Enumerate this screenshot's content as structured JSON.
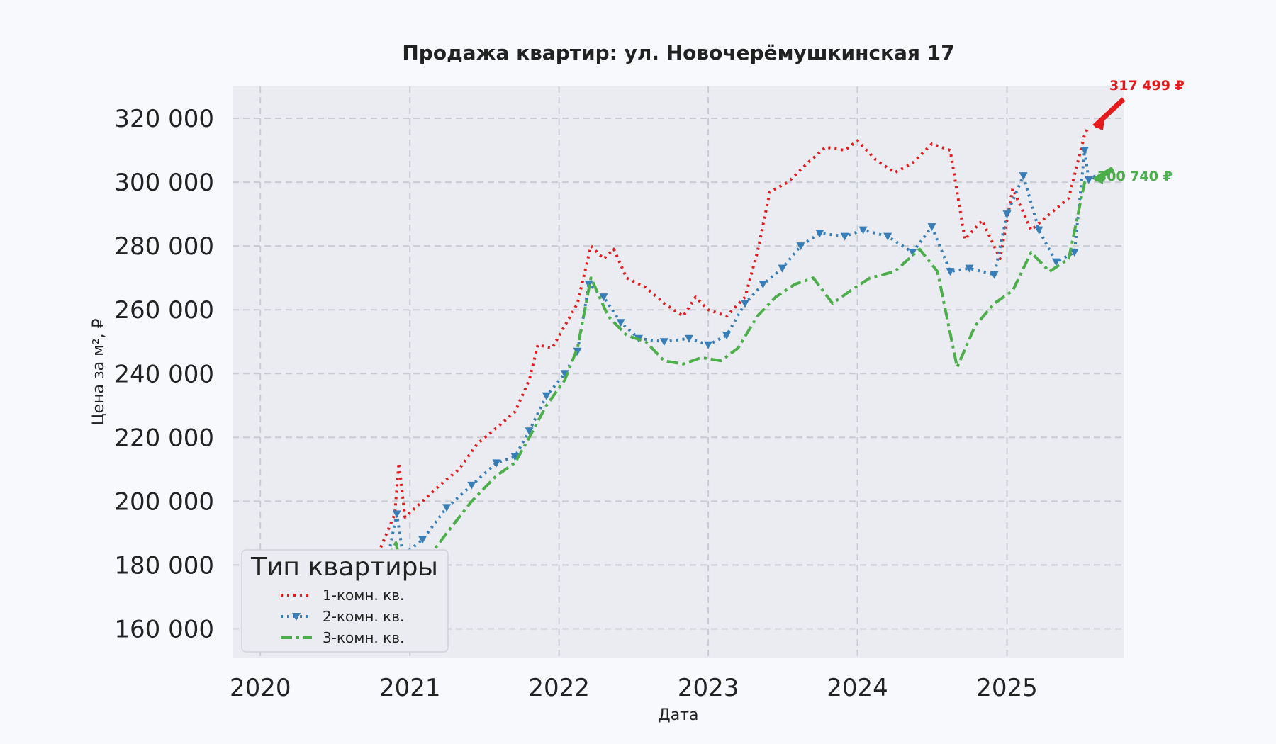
{
  "chart_data": {
    "type": "line",
    "title": "Продажа квартир: ул. Новочерёмушкинская 17",
    "xlabel": "Дата",
    "ylabel": "Цена за м², ₽",
    "x_ticks": [
      "2020",
      "2021",
      "2022",
      "2023",
      "2024",
      "2025"
    ],
    "y_ticks": [
      "160 000",
      "180 000",
      "200 000",
      "220 000",
      "240 000",
      "260 000",
      "280 000",
      "300 000",
      "320 000"
    ],
    "xlim": [
      "2019-10-25",
      "2025-10-15"
    ],
    "ylim": [
      151000,
      330000
    ],
    "grid": true,
    "legend": {
      "title": "Тип квартиры",
      "position": "bottom-left"
    },
    "series": [
      {
        "name": "1-комн. кв.",
        "color": "#e41a1c",
        "style": "dotted",
        "x": [
          "2020-01-01",
          "2020-02-15",
          "2020-04-01",
          "2020-05-01",
          "2020-06-15",
          "2020-08-01",
          "2020-09-15",
          "2020-10-20",
          "2020-11-25",
          "2020-12-05",
          "2020-12-20",
          "2021-02-01",
          "2021-03-15",
          "2021-05-01",
          "2021-06-15",
          "2021-08-01",
          "2021-09-15",
          "2021-10-20",
          "2021-11-10",
          "2021-12-15",
          "2022-01-15",
          "2022-02-15",
          "2022-03-20",
          "2022-04-20",
          "2022-05-15",
          "2022-06-15",
          "2022-08-01",
          "2022-09-15",
          "2022-11-01",
          "2022-12-01",
          "2023-01-01",
          "2023-02-15",
          "2023-04-01",
          "2023-05-01",
          "2023-06-01",
          "2023-07-15",
          "2023-09-01",
          "2023-10-15",
          "2023-12-01",
          "2024-01-01",
          "2024-02-15",
          "2024-04-01",
          "2024-05-15",
          "2024-07-01",
          "2024-08-15",
          "2024-09-20",
          "2024-11-01",
          "2024-12-15",
          "2025-01-15",
          "2025-03-01",
          "2025-04-15",
          "2025-06-01",
          "2025-07-10",
          "2025-07-20"
        ],
        "values": [
          172000,
          175000,
          178000,
          183000,
          172000,
          175000,
          178000,
          185000,
          196000,
          212000,
          195000,
          200000,
          205000,
          210000,
          218000,
          223000,
          228000,
          238000,
          249000,
          248000,
          255000,
          262000,
          280000,
          276000,
          279000,
          270000,
          267000,
          262000,
          258000,
          264000,
          260000,
          258000,
          264000,
          278000,
          297000,
          300000,
          306000,
          311000,
          310000,
          313000,
          307000,
          303000,
          306000,
          312000,
          310000,
          282000,
          288000,
          276000,
          298000,
          285000,
          290000,
          295000,
          315000,
          317499
        ]
      },
      {
        "name": "2-комн. кв.",
        "color": "#377eb8",
        "style": "dotted-triangle",
        "x": [
          "2020-01-01",
          "2020-03-01",
          "2020-05-01",
          "2020-07-01",
          "2020-09-01",
          "2020-11-01",
          "2020-11-30",
          "2020-12-15",
          "2021-02-01",
          "2021-04-01",
          "2021-06-01",
          "2021-08-01",
          "2021-09-15",
          "2021-10-20",
          "2021-12-01",
          "2022-01-15",
          "2022-02-15",
          "2022-03-15",
          "2022-04-20",
          "2022-06-01",
          "2022-07-15",
          "2022-09-15",
          "2022-11-15",
          "2023-01-01",
          "2023-02-15",
          "2023-04-01",
          "2023-05-15",
          "2023-07-01",
          "2023-08-15",
          "2023-10-01",
          "2023-12-01",
          "2024-01-15",
          "2024-03-15",
          "2024-05-15",
          "2024-07-01",
          "2024-08-15",
          "2024-10-01",
          "2024-12-01",
          "2025-01-01",
          "2025-02-10",
          "2025-03-20",
          "2025-05-01",
          "2025-06-15",
          "2025-07-10",
          "2025-07-20"
        ],
        "values": [
          163000,
          166000,
          169000,
          165000,
          170000,
          178000,
          196000,
          183000,
          188000,
          198000,
          205000,
          212000,
          214000,
          222000,
          233000,
          240000,
          247000,
          268000,
          264000,
          256000,
          251000,
          250000,
          251000,
          249000,
          252000,
          262000,
          268000,
          273000,
          280000,
          284000,
          283000,
          285000,
          283000,
          278000,
          286000,
          272000,
          273000,
          271000,
          290000,
          302000,
          285000,
          275000,
          278000,
          310000,
          300740
        ]
      },
      {
        "name": "3-комн. кв.",
        "color": "#4daf4a",
        "style": "dashdot",
        "x": [
          "2020-01-01",
          "2020-04-01",
          "2020-06-01",
          "2020-08-01",
          "2020-10-01",
          "2020-11-28",
          "2020-12-15",
          "2021-02-01",
          "2021-04-01",
          "2021-06-01",
          "2021-08-01",
          "2021-09-15",
          "2021-10-20",
          "2021-12-01",
          "2022-01-15",
          "2022-02-15",
          "2022-03-20",
          "2022-05-01",
          "2022-06-15",
          "2022-08-01",
          "2022-09-15",
          "2022-11-01",
          "2022-12-15",
          "2023-02-01",
          "2023-03-15",
          "2023-05-01",
          "2023-06-15",
          "2023-08-01",
          "2023-09-15",
          "2023-11-01",
          "2023-12-15",
          "2024-02-01",
          "2024-04-01",
          "2024-06-01",
          "2024-07-15",
          "2024-09-01",
          "2024-10-15",
          "2024-12-01",
          "2025-01-15",
          "2025-03-01",
          "2025-04-15",
          "2025-06-01",
          "2025-07-10",
          "2025-07-20"
        ],
        "values": [
          163000,
          168000,
          162000,
          167000,
          172000,
          187000,
          176000,
          180000,
          190000,
          200000,
          208000,
          212000,
          220000,
          230000,
          238000,
          248000,
          270000,
          258000,
          252000,
          250000,
          244000,
          243000,
          245000,
          244000,
          248000,
          258000,
          264000,
          268000,
          270000,
          262000,
          266000,
          270000,
          272000,
          279000,
          272000,
          242000,
          255000,
          262000,
          266000,
          278000,
          272000,
          276000,
          300000,
          300740
        ]
      }
    ],
    "annotations": [
      {
        "text": "317 499 ₽",
        "color": "#e41a1c",
        "x": "2025-07-20",
        "value": 317499
      },
      {
        "text": "300 740 ₽",
        "color": "#377eb8",
        "x": "2025-07-20",
        "value": 300740
      },
      {
        "text": "300 740 ₽",
        "color": "#4daf4a",
        "x": "2025-07-20",
        "value": 300740
      }
    ]
  }
}
